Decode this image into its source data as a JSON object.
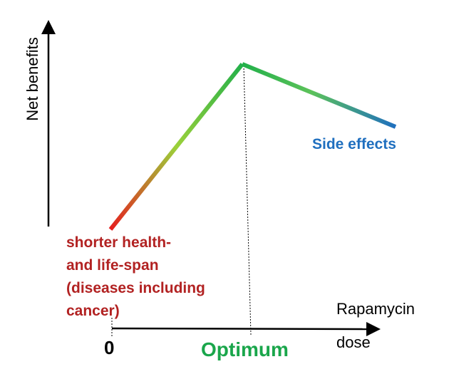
{
  "y_axis_label": "Net benefits",
  "x_axis_label_line1": "Rapamycin",
  "x_axis_label_line2": "dose",
  "origin_label": "0",
  "optimum_label": "Optimum",
  "side_effects_label": "Side effects",
  "low_dose_effect_lines": [
    "shorter health-",
    "and life-span",
    "(diseases including",
    "cancer)"
  ],
  "colors": {
    "low_dose": "#e61e1e",
    "optimum": "#22b04a",
    "rising_mid": "#9bd13a",
    "falling_mid": "#5cc25a",
    "side_effects": "#1f6fbf",
    "low_dose_text": "#b22222",
    "optimum_text": "#1aa64b",
    "side_effects_text": "#1f6fbf",
    "axis": "#000000"
  }
}
